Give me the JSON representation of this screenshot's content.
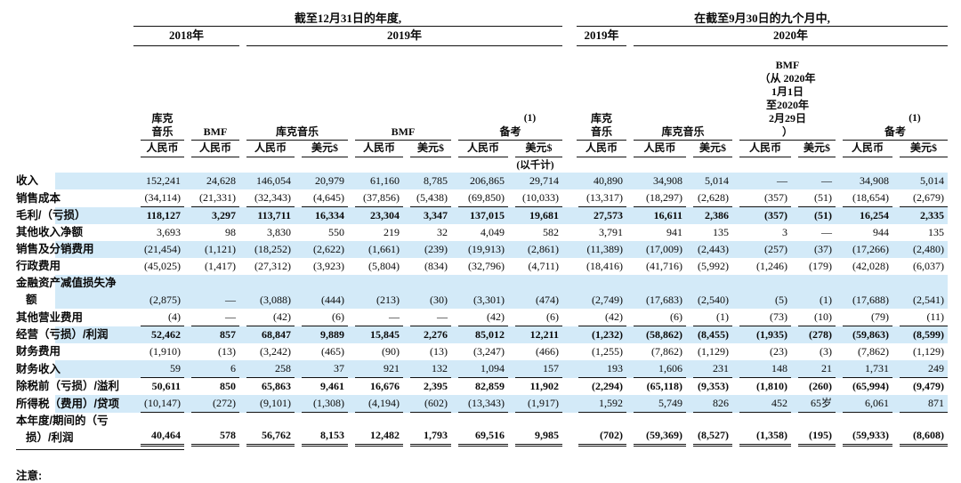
{
  "note_label": "注意:",
  "colors": {
    "row_highlight": "#d3eaf8",
    "rule": "#111111"
  },
  "table": {
    "header": {
      "annual_title": "截至12月31日的年度,",
      "interim_title": "在截至9月30日的九个月中,",
      "years": [
        "2018年",
        "2019年",
        "2019年",
        "2020年"
      ],
      "thousands_note": "(以千计)",
      "entity_groups": [
        {
          "lines": [
            "库克",
            "音乐"
          ],
          "span": 1
        },
        {
          "lines": [
            "BMF"
          ],
          "span": 1
        },
        {
          "lines": [
            "库克音乐"
          ],
          "span": 2
        },
        {
          "lines": [
            "BMF"
          ],
          "span": 2
        },
        {
          "sup": "(1)",
          "lines": [
            "备考"
          ],
          "span": 2
        },
        {
          "lines": [
            "库克",
            "音乐"
          ],
          "span": 1,
          "gap": true
        },
        {
          "lines": [
            "库克音乐"
          ],
          "span": 2
        },
        {
          "lines": [
            "BMF",
            "（从 2020年",
            "1月1日",
            "至2020年",
            "2月29日",
            "）"
          ],
          "span": 2
        },
        {
          "sup": "(1)",
          "lines": [
            "备考"
          ],
          "span": 2
        }
      ],
      "currencies": [
        "人民币",
        "人民币",
        "人民币",
        "美元$",
        "人民币",
        "美元$",
        "人民币",
        "美元$",
        "人民币",
        "人民币",
        "美元$",
        "人民币",
        "美元$",
        "人民币",
        "美元$"
      ]
    },
    "rows": [
      {
        "label": "收入",
        "hl": true,
        "bold": false,
        "rule": "none",
        "values": [
          "152,241",
          "24,628",
          "146,054",
          "20,979",
          "61,160",
          "8,785",
          "206,865",
          "29,714",
          "40,890",
          "34,908",
          "5,014",
          "—",
          "—",
          "34,908",
          "5,014"
        ]
      },
      {
        "label": "销售成本",
        "hl": false,
        "bold": false,
        "rule": "single",
        "values": [
          "(34,114)",
          "(21,331)",
          "(32,343)",
          "(4,645)",
          "(37,856)",
          "(5,438)",
          "(69,850)",
          "(10,033)",
          "(13,317)",
          "(18,297)",
          "(2,628)",
          "(357)",
          "(51)",
          "(18,654)",
          "(2,679)"
        ]
      },
      {
        "label": "毛利/（亏损）",
        "hl": true,
        "bold": true,
        "rule": "none",
        "values": [
          "118,127",
          "3,297",
          "113,711",
          "16,334",
          "23,304",
          "3,347",
          "137,015",
          "19,681",
          "27,573",
          "16,611",
          "2,386",
          "(357)",
          "(51)",
          "16,254",
          "2,335"
        ]
      },
      {
        "label": "其他收入净额",
        "hl": false,
        "bold": false,
        "rule": "none",
        "values": [
          "3,693",
          "98",
          "3,830",
          "550",
          "219",
          "32",
          "4,049",
          "582",
          "3,791",
          "941",
          "135",
          "3",
          "—",
          "944",
          "135"
        ]
      },
      {
        "label": "销售及分销费用",
        "hl": true,
        "bold": false,
        "rule": "none",
        "values": [
          "(21,454)",
          "(1,121)",
          "(18,252)",
          "(2,622)",
          "(1,661)",
          "(239)",
          "(19,913)",
          "(2,861)",
          "(11,389)",
          "(17,009)",
          "(2,443)",
          "(257)",
          "(37)",
          "(17,266)",
          "(2,480)"
        ]
      },
      {
        "label": "行政费用",
        "hl": false,
        "bold": false,
        "rule": "none",
        "values": [
          "(45,025)",
          "(1,417)",
          "(27,312)",
          "(3,923)",
          "(5,804)",
          "(834)",
          "(32,796)",
          "(4,711)",
          "(18,416)",
          "(41,716)",
          "(5,992)",
          "(1,246)",
          "(179)",
          "(42,028)",
          "(6,037)"
        ]
      },
      {
        "label": "金融资产减值损失净",
        "label2": "额",
        "hl": true,
        "bold": false,
        "rule": "none",
        "values": [
          "(2,875)",
          "—",
          "(3,088)",
          "(444)",
          "(213)",
          "(30)",
          "(3,301)",
          "(474)",
          "(2,749)",
          "(17,683)",
          "(2,540)",
          "(5)",
          "(1)",
          "(17,688)",
          "(2,541)"
        ]
      },
      {
        "label": "其他营业费用",
        "hl": false,
        "bold": false,
        "rule": "single",
        "values": [
          "(4)",
          "—",
          "(42)",
          "(6)",
          "—",
          "—",
          "(42)",
          "(6)",
          "(42)",
          "(6)",
          "(1)",
          "(73)",
          "(10)",
          "(79)",
          "(11)"
        ]
      },
      {
        "label": "经营（亏损）/利润",
        "hl": true,
        "bold": true,
        "rule": "none",
        "values": [
          "52,462",
          "857",
          "68,847",
          "9,889",
          "15,845",
          "2,276",
          "85,012",
          "12,211",
          "(1,232)",
          "(58,862)",
          "(8,455)",
          "(1,935)",
          "(278)",
          "(59,863)",
          "(8,599)"
        ]
      },
      {
        "label": "财务费用",
        "hl": false,
        "bold": false,
        "rule": "none",
        "values": [
          "(1,910)",
          "(13)",
          "(3,242)",
          "(465)",
          "(90)",
          "(13)",
          "(3,247)",
          "(466)",
          "(1,255)",
          "(7,862)",
          "(1,129)",
          "(23)",
          "(3)",
          "(7,862)",
          "(1,129)"
        ]
      },
      {
        "label": "财务收入",
        "hl": true,
        "bold": false,
        "rule": "single",
        "values": [
          "59",
          "6",
          "258",
          "37",
          "921",
          "132",
          "1,094",
          "157",
          "193",
          "1,606",
          "231",
          "148",
          "21",
          "1,731",
          "249"
        ]
      },
      {
        "label": "除税前（亏损）/溢利",
        "hl": false,
        "bold": true,
        "rule": "none",
        "values": [
          "50,611",
          "850",
          "65,863",
          "9,461",
          "16,676",
          "2,395",
          "82,859",
          "11,902",
          "(2,294)",
          "(65,118)",
          "(9,353)",
          "(1,810)",
          "(260)",
          "(65,994)",
          "(9,479)"
        ]
      },
      {
        "label": "所得税（费用）/贷项",
        "hl": true,
        "bold": false,
        "rule": "single",
        "values": [
          "(10,147)",
          "(272)",
          "(9,101)",
          "(1,308)",
          "(4,194)",
          "(602)",
          "(13,343)",
          "(1,917)",
          "1,592",
          "5,749",
          "826",
          "452",
          "65岁",
          "6,061",
          "871"
        ]
      },
      {
        "label": "本年度/期间的（亏",
        "label2": "损）/利润",
        "hl": false,
        "bold": true,
        "rule": "double",
        "values": [
          "40,464",
          "578",
          "56,762",
          "8,153",
          "12,482",
          "1,793",
          "69,516",
          "9,985",
          "(702)",
          "(59,369)",
          "(8,527)",
          "(1,358)",
          "(195)",
          "(59,933)",
          "(8,608)"
        ]
      }
    ]
  }
}
